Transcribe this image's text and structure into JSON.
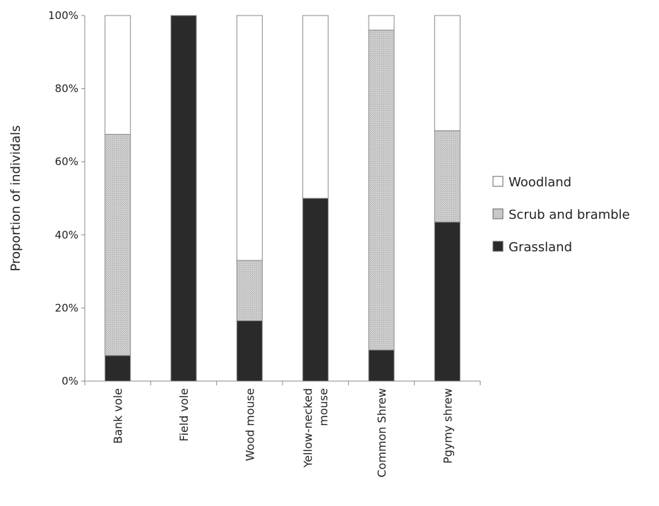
{
  "chart_data": {
    "type": "bar",
    "stacked": true,
    "percent_stacked": true,
    "title": "",
    "xlabel": "",
    "ylabel": "Proportion of individals",
    "ylim": [
      0,
      100
    ],
    "y_ticks": [
      "0%",
      "20%",
      "40%",
      "60%",
      "80%",
      "100%"
    ],
    "categories": [
      [
        "Bank vole"
      ],
      [
        "Field vole"
      ],
      [
        "Wood mouse"
      ],
      [
        "Yellow-necked",
        "mouse"
      ],
      [
        "Common Shrew"
      ],
      [
        "Pgymy shrew"
      ]
    ],
    "series": [
      {
        "name": "Grassland",
        "color": "#2a2a2a",
        "values": [
          7,
          100,
          16.5,
          50,
          8.5,
          43.5
        ]
      },
      {
        "name": "Scrub and bramble",
        "color": "#c8c8c8",
        "values": [
          60.5,
          0,
          16.5,
          0,
          87.5,
          25
        ]
      },
      {
        "name": "Woodland",
        "color": "#ffffff",
        "values": [
          32.5,
          0,
          67,
          50,
          4,
          31.5
        ]
      }
    ],
    "legend": {
      "position": "right",
      "order": [
        "Woodland",
        "Scrub and bramble",
        "Grassland"
      ]
    },
    "grid": false
  }
}
